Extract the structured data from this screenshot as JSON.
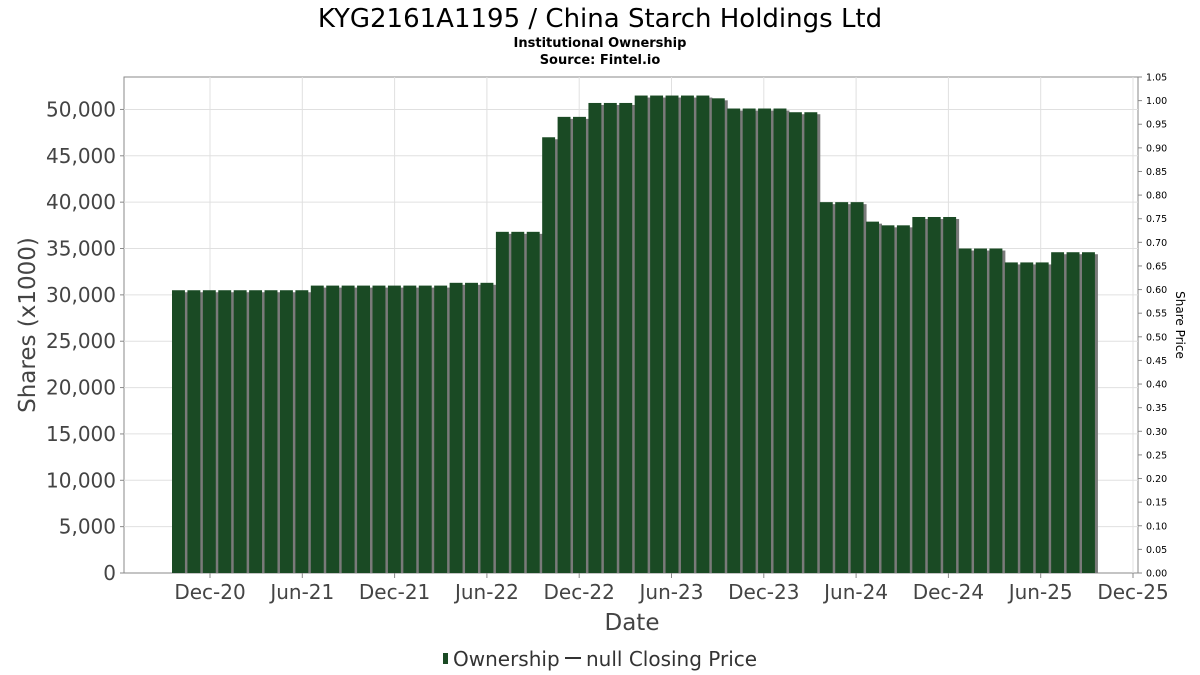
{
  "chart_data": {
    "type": "bar",
    "title": "KYG2161A1195 / China Starch Holdings Ltd",
    "subtitle1": "Institutional Ownership",
    "subtitle2": "Source: Fintel.io",
    "xlabel": "Date",
    "ylabel": "Shares (x1000)",
    "y2label": "Share Price",
    "ylim": [
      0,
      53500
    ],
    "y2lim": [
      0,
      1.05
    ],
    "y_ticks": [
      0,
      5000,
      10000,
      15000,
      20000,
      25000,
      30000,
      35000,
      40000,
      45000,
      50000
    ],
    "y_tick_labels": [
      "0",
      "5,000",
      "10,000",
      "15,000",
      "20,000",
      "25,000",
      "30,000",
      "35,000",
      "40,000",
      "45,000",
      "50,000"
    ],
    "y2_tick_labels": [
      "0.00",
      "0.05",
      "0.10",
      "0.15",
      "0.20",
      "0.25",
      "0.30",
      "0.35",
      "0.40",
      "0.45",
      "0.50",
      "0.55",
      "0.60",
      "0.65",
      "0.70",
      "0.75",
      "0.80",
      "0.85",
      "0.90",
      "0.95",
      "1.00",
      "1.05"
    ],
    "x_tick_labels": [
      "Dec-20",
      "Jun-21",
      "Dec-21",
      "Jun-22",
      "Dec-22",
      "Jun-23",
      "Dec-23",
      "Jun-24",
      "Dec-24",
      "Jun-25",
      "Dec-25"
    ],
    "legend": [
      {
        "label": "Ownership",
        "symbol": "bar"
      },
      {
        "label": "null Closing Price",
        "symbol": "line"
      }
    ],
    "legend_position": "bottom",
    "grid": true,
    "colors": {
      "bar": "#1a4a24",
      "bar_shadow": "#7a7a7a",
      "grid": "#e0e0e0",
      "axis": "#888888"
    },
    "series": [
      {
        "name": "Ownership",
        "values": [
          30500,
          30500,
          30500,
          30500,
          30500,
          30500,
          30500,
          30500,
          30500,
          31000,
          31000,
          31000,
          31000,
          31000,
          31000,
          31000,
          31000,
          31000,
          31300,
          31300,
          31300,
          36800,
          36800,
          36800,
          47000,
          49200,
          49200,
          50700,
          50700,
          50700,
          51500,
          51500,
          51500,
          51500,
          51500,
          51200,
          50100,
          50100,
          50100,
          50100,
          49700,
          49700,
          40000,
          40000,
          40000,
          37900,
          37500,
          37500,
          38400,
          38400,
          38400,
          35000,
          35000,
          35000,
          33500,
          33500,
          33500,
          34600,
          34600,
          34600
        ]
      }
    ]
  }
}
